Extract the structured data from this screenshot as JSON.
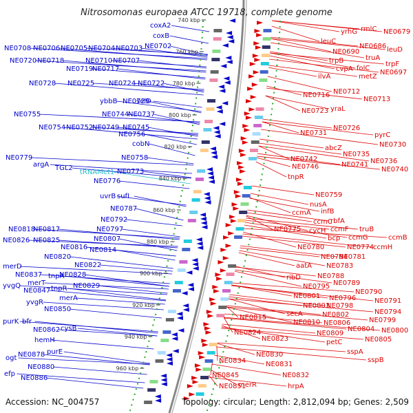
{
  "title": "Nitrosomonas europaea ATCC 19718, complete genome",
  "accession": "Accession: NC_004757",
  "topology": "Topology: circular; Length: 2,812,094 bp; Genes: 2,509",
  "colors": {
    "left_genes": "#0000cc",
    "right_genes": "#dd0000",
    "trna": "#22bbcc",
    "backbone": "#888888"
  },
  "ticks": [
    "740 kbp",
    "760 kbp",
    "780 kbp",
    "800 kbp",
    "820 kbp",
    "840 kbp",
    "860 kbp",
    "880 kbp",
    "900 kbp",
    "920 kbp",
    "940 kbp",
    "960 kbp"
  ],
  "left_labels": [
    {
      "t": "coxA2"
    },
    {
      "t": "coxB"
    },
    {
      "t": "NE0702"
    },
    {
      "t": "NE0708"
    },
    {
      "t": "NE0706"
    },
    {
      "t": "NE0705"
    },
    {
      "t": "NE0704"
    },
    {
      "t": "NE0703"
    },
    {
      "t": "NE0720"
    },
    {
      "t": "NE0718"
    },
    {
      "t": "NE0710"
    },
    {
      "t": "NE0707"
    },
    {
      "t": "NE0719"
    },
    {
      "t": "NE0717"
    },
    {
      "t": "NE0728"
    },
    {
      "t": "NE0725"
    },
    {
      "t": "NE0724"
    },
    {
      "t": "NE0722"
    },
    {
      "t": "ybbB"
    },
    {
      "t": "NE0729"
    },
    {
      "t": "selD"
    },
    {
      "t": "NE0755"
    },
    {
      "t": "NE0744"
    },
    {
      "t": "NE0737"
    },
    {
      "t": "NE0754"
    },
    {
      "t": "NE0752"
    },
    {
      "t": "NE0749"
    },
    {
      "t": "NE0745"
    },
    {
      "t": "NE0756"
    },
    {
      "t": "cobN"
    },
    {
      "t": "NE0758"
    },
    {
      "t": "NE0779"
    },
    {
      "t": "argA"
    },
    {
      "t": "TGL2"
    },
    {
      "t": "tRNAMet1",
      "trna": true
    },
    {
      "t": "NE0773"
    },
    {
      "t": "NE0776"
    },
    {
      "t": "uvrB"
    },
    {
      "t": "sufI"
    },
    {
      "t": "NE0787"
    },
    {
      "t": "NE0792"
    },
    {
      "t": "NE0797"
    },
    {
      "t": "NE0818"
    },
    {
      "t": "NE0817"
    },
    {
      "t": "NE0807"
    },
    {
      "t": "NE0826"
    },
    {
      "t": "NE0825"
    },
    {
      "t": "NE0816"
    },
    {
      "t": "NE0814"
    },
    {
      "t": "NE0820"
    },
    {
      "t": "NE0822"
    },
    {
      "t": "merD"
    },
    {
      "t": "NE0837"
    },
    {
      "t": "tnpA"
    },
    {
      "t": "NE0828"
    },
    {
      "t": "merT"
    },
    {
      "t": "NE0829"
    },
    {
      "t": "yvgQ"
    },
    {
      "t": "NE0847"
    },
    {
      "t": "tnpR"
    },
    {
      "t": "merA"
    },
    {
      "t": "yvgR"
    },
    {
      "t": "NE0850"
    },
    {
      "t": "purK"
    },
    {
      "t": "bfr"
    },
    {
      "t": "NE0862"
    },
    {
      "t": "cysB"
    },
    {
      "t": "hemH"
    },
    {
      "t": "NE0878"
    },
    {
      "t": "purE"
    },
    {
      "t": "ogt"
    },
    {
      "t": "NE0880"
    },
    {
      "t": "efp"
    },
    {
      "t": "NE0886"
    }
  ],
  "right_labels": [
    {
      "t": "rmlC"
    },
    {
      "t": "yrhG"
    },
    {
      "t": "NE0679"
    },
    {
      "t": "leuC"
    },
    {
      "t": "NE0686"
    },
    {
      "t": "leuD"
    },
    {
      "t": "NE0690"
    },
    {
      "t": "truA"
    },
    {
      "t": "trpB"
    },
    {
      "t": "trpF"
    },
    {
      "t": "cvpA"
    },
    {
      "t": "folC"
    },
    {
      "t": "ilvA"
    },
    {
      "t": "metZ"
    },
    {
      "t": "NE0697"
    },
    {
      "t": "NE0712"
    },
    {
      "t": "NE0716"
    },
    {
      "t": "NE0713"
    },
    {
      "t": "yraL"
    },
    {
      "t": "NE0723"
    },
    {
      "t": "NE0726"
    },
    {
      "t": "NE0731"
    },
    {
      "t": "pyrC"
    },
    {
      "t": "NE0730"
    },
    {
      "t": "abcZ"
    },
    {
      "t": "NE0735"
    },
    {
      "t": "NE0742"
    },
    {
      "t": "NE0736"
    },
    {
      "t": "NE0746"
    },
    {
      "t": "NE0741"
    },
    {
      "t": "NE0740"
    },
    {
      "t": "tnpR"
    },
    {
      "t": "NE0759"
    },
    {
      "t": "nusA"
    },
    {
      "t": "infB"
    },
    {
      "t": "ccmA"
    },
    {
      "t": "ccmC"
    },
    {
      "t": "rbfA"
    },
    {
      "t": "NE0775"
    },
    {
      "t": "cycH"
    },
    {
      "t": "ccmF"
    },
    {
      "t": "truB"
    },
    {
      "t": "bcp"
    },
    {
      "t": "ccmG"
    },
    {
      "t": "ccmB"
    },
    {
      "t": "NE0774"
    },
    {
      "t": "ccmH"
    },
    {
      "t": "NE0780"
    },
    {
      "t": "NE0784"
    },
    {
      "t": "NE0781"
    },
    {
      "t": "aatA"
    },
    {
      "t": "NE0783"
    },
    {
      "t": "NE0788"
    },
    {
      "t": "ribD"
    },
    {
      "t": "NE0789"
    },
    {
      "t": "NE0795"
    },
    {
      "t": "NE0790"
    },
    {
      "t": "NE0801"
    },
    {
      "t": "NE0796"
    },
    {
      "t": "NE0791"
    },
    {
      "t": "NE0803"
    },
    {
      "t": "NE0798"
    },
    {
      "t": "NE0794"
    },
    {
      "t": "secA"
    },
    {
      "t": "NE0802"
    },
    {
      "t": "NE0815"
    },
    {
      "t": "NE0799"
    },
    {
      "t": "NE0810"
    },
    {
      "t": "NE0806"
    },
    {
      "t": "NE0804"
    },
    {
      "t": "NE0800"
    },
    {
      "t": "NE0824"
    },
    {
      "t": "NE0809"
    },
    {
      "t": "NE0805"
    },
    {
      "t": "NE0823"
    },
    {
      "t": "petC"
    },
    {
      "t": "sspA"
    },
    {
      "t": "NE0830"
    },
    {
      "t": "sspB"
    },
    {
      "t": "NE0834"
    },
    {
      "t": "NE0831"
    },
    {
      "t": "NE0832"
    },
    {
      "t": "NE0845"
    },
    {
      "t": "merR"
    },
    {
      "t": "hrpA"
    },
    {
      "t": "NE0851"
    }
  ]
}
